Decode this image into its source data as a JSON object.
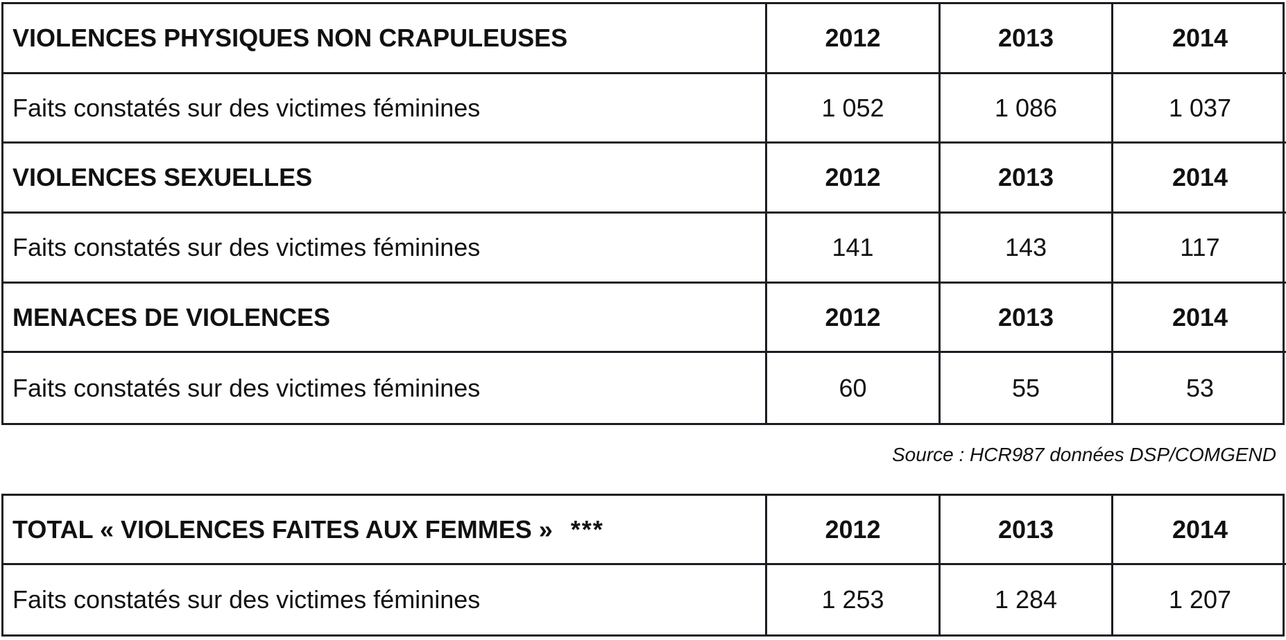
{
  "main_table": {
    "sections": [
      {
        "header": "VIOLENCES PHYSIQUES NON CRAPULEUSES",
        "years": [
          "2012",
          "2013",
          "2014"
        ],
        "row_label": "Faits constatés sur des victimes féminines",
        "values": [
          "1 052",
          "1 086",
          "1 037"
        ]
      },
      {
        "header": "VIOLENCES SEXUELLES",
        "years": [
          "2012",
          "2013",
          "2014"
        ],
        "row_label": "Faits constatés sur des victimes féminines",
        "values": [
          "141",
          "143",
          "117"
        ]
      },
      {
        "header": "MENACES DE VIOLENCES",
        "years": [
          "2012",
          "2013",
          "2014"
        ],
        "row_label": "Faits constatés sur des victimes féminines",
        "values": [
          "60",
          "55",
          "53"
        ]
      }
    ]
  },
  "source_note": "Source : HCR987 données DSP/COMGEND",
  "total_table": {
    "header": "TOTAL « VIOLENCES FAITES AUX FEMMES »",
    "stars": "***",
    "years": [
      "2012",
      "2013",
      "2014"
    ],
    "row_label": "Faits constatés sur des victimes féminines",
    "values": [
      "1 253",
      "1 284",
      "1 207"
    ]
  },
  "colors": {
    "border": "#1b1b22",
    "text": "#111111",
    "background": "#ffffff"
  }
}
